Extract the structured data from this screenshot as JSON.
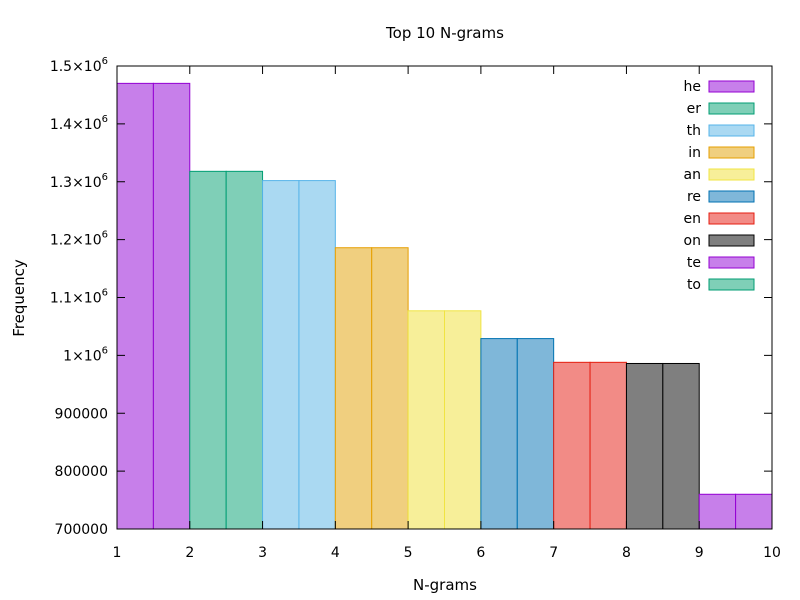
{
  "chart_data": {
    "type": "bar",
    "title": "Top 10 N-grams",
    "xlabel": "N-grams",
    "ylabel": "Frequency",
    "xlim": [
      1,
      10
    ],
    "ylim": [
      700000,
      1500000
    ],
    "x_ticks": [
      1,
      2,
      3,
      4,
      5,
      6,
      7,
      8,
      9,
      10
    ],
    "y_ticks": [
      700000,
      800000,
      900000,
      1000000,
      1100000,
      1200000,
      1300000,
      1400000,
      1500000
    ],
    "y_tick_labels": [
      {
        "base": "700000",
        "exp": ""
      },
      {
        "base": "800000",
        "exp": ""
      },
      {
        "base": "900000",
        "exp": ""
      },
      {
        "base": "1×10",
        "exp": "6"
      },
      {
        "base": "1.1×10",
        "exp": "6"
      },
      {
        "base": "1.2×10",
        "exp": "6"
      },
      {
        "base": "1.3×10",
        "exp": "6"
      },
      {
        "base": "1.4×10",
        "exp": "6"
      },
      {
        "base": "1.5×10",
        "exp": "6"
      }
    ],
    "grid": false,
    "legend_position": "top-right",
    "series": [
      {
        "name": "he",
        "x_range": [
          1,
          2
        ],
        "value": 1470000,
        "fill": "#c77fea",
        "stroke": "#9400d3"
      },
      {
        "name": "er",
        "x_range": [
          2,
          3
        ],
        "value": 1318000,
        "fill": "#7fcfb7",
        "stroke": "#009e73"
      },
      {
        "name": "th",
        "x_range": [
          3,
          4
        ],
        "value": 1302000,
        "fill": "#aad9f2",
        "stroke": "#56b4e9"
      },
      {
        "name": "in",
        "x_range": [
          4,
          5
        ],
        "value": 1186000,
        "fill": "#f0cf7f",
        "stroke": "#e69f00"
      },
      {
        "name": "an",
        "x_range": [
          5,
          6
        ],
        "value": 1077000,
        "fill": "#f7ef99",
        "stroke": "#f0e442"
      },
      {
        "name": "re",
        "x_range": [
          6,
          7
        ],
        "value": 1029000,
        "fill": "#7fb7d9",
        "stroke": "#0072b2"
      },
      {
        "name": "en",
        "x_range": [
          7,
          8
        ],
        "value": 988000,
        "fill": "#f28b86",
        "stroke": "#e51e10"
      },
      {
        "name": "on",
        "x_range": [
          8,
          9
        ],
        "value": 986000,
        "fill": "#7f7f7f",
        "stroke": "#000000"
      },
      {
        "name": "te",
        "x_range": [
          9,
          10
        ],
        "value": 760000,
        "fill": "#c77fea",
        "stroke": "#9400d3"
      },
      {
        "name": "to",
        "x_range": null,
        "value": null,
        "fill": "#7fcfb7",
        "stroke": "#009e73"
      }
    ]
  }
}
